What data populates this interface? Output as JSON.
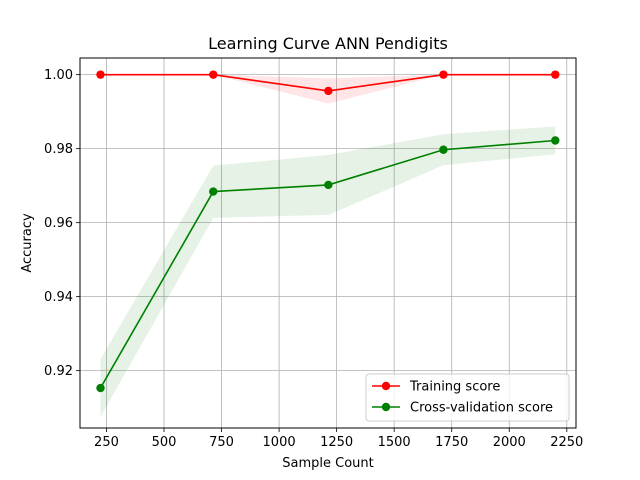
{
  "chart_data": {
    "type": "line",
    "title": "Learning Curve ANN Pendigits",
    "xlabel": "Sample Count",
    "ylabel": "Accuracy",
    "x": [
      224,
      714,
      1214,
      1714,
      2200
    ],
    "xlim": [
      135,
      2290
    ],
    "ylim": [
      0.9045,
      1.0045
    ],
    "xticks": [
      250,
      500,
      750,
      1000,
      1250,
      1500,
      1750,
      2000,
      2250
    ],
    "yticks": [
      0.92,
      0.94,
      0.96,
      0.98,
      1.0
    ],
    "xtick_labels": [
      "250",
      "500",
      "750",
      "1000",
      "1250",
      "1500",
      "1750",
      "2000",
      "2250"
    ],
    "ytick_labels": [
      "0.92",
      "0.94",
      "0.96",
      "0.98",
      "1.00"
    ],
    "grid": true,
    "legend_position": "lower-right",
    "series": [
      {
        "name": "Training score",
        "color": "#ff0000",
        "values": [
          1.0,
          1.0,
          0.9956,
          1.0,
          1.0
        ],
        "band_lower": [
          1.0,
          1.0,
          0.9922,
          1.0,
          1.0
        ],
        "band_upper": [
          1.0,
          1.0,
          0.999,
          1.0,
          1.0
        ]
      },
      {
        "name": "Cross-validation score",
        "color": "#008000",
        "values": [
          0.9153,
          0.9684,
          0.9702,
          0.9797,
          0.9822
        ],
        "band_lower": [
          0.9075,
          0.9613,
          0.9621,
          0.9755,
          0.9785
        ],
        "band_upper": [
          0.9231,
          0.9754,
          0.9783,
          0.9839,
          0.986
        ]
      }
    ]
  }
}
